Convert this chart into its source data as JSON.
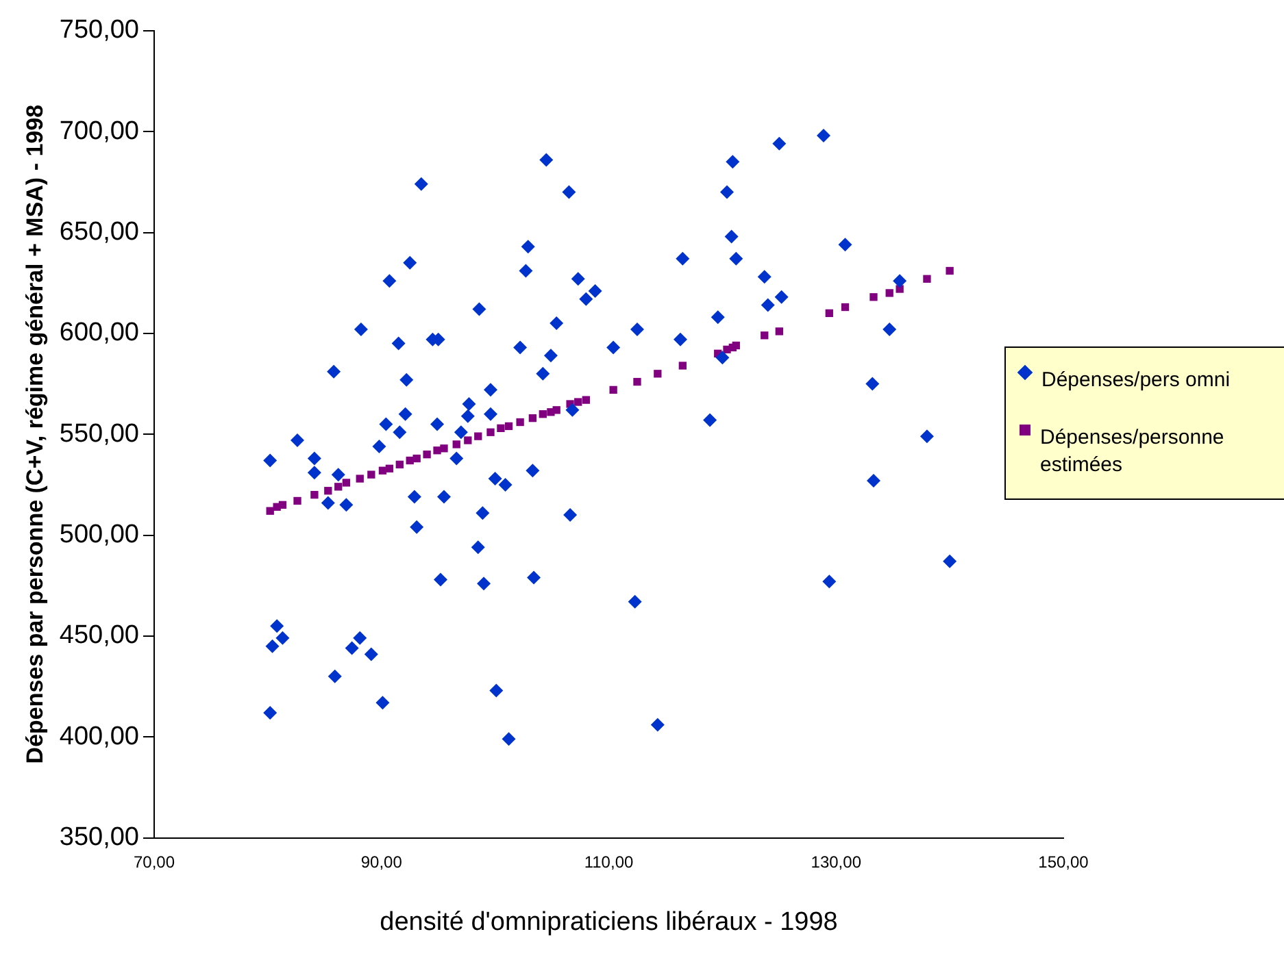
{
  "chart_data": {
    "type": "scatter",
    "xlabel": "densité d'omnipraticiens libéraux - 1998",
    "ylabel": "Dépenses par personne (C+V, régime général + MSA) - 1998",
    "xlim": [
      70,
      150
    ],
    "xticks": [
      {
        "value": 70,
        "label": "70,00"
      },
      {
        "value": 90,
        "label": "90,00"
      },
      {
        "value": 110,
        "label": "110,00"
      },
      {
        "value": 130,
        "label": "130,00"
      },
      {
        "value": 150,
        "label": "150,00"
      }
    ],
    "ylim": [
      350,
      750
    ],
    "yticks": [
      {
        "value": 350,
        "label": "350,00"
      },
      {
        "value": 400,
        "label": "400,00"
      },
      {
        "value": 450,
        "label": "450,00"
      },
      {
        "value": 500,
        "label": "500,00"
      },
      {
        "value": 550,
        "label": "550,00"
      },
      {
        "value": 600,
        "label": "600,00"
      },
      {
        "value": 650,
        "label": "650,00"
      },
      {
        "value": 700,
        "label": "700,00"
      },
      {
        "value": 750,
        "label": "750,00"
      }
    ],
    "grid": false,
    "legend": "right",
    "series": [
      {
        "name": "Dépenses/pers omni",
        "color": "#0033cc",
        "marker": "diamond",
        "x": [
          93.5,
          90.7,
          92.5,
          88.2,
          91.5,
          92.2,
          85.8,
          92.1,
          90.4,
          91.6,
          89.8,
          82.6,
          84.1,
          80.2,
          84.1,
          86.2,
          85.3,
          86.9,
          92.9,
          93.1,
          80.8,
          80.4,
          81.3,
          80.2,
          85.9,
          88.1,
          87.4,
          89.1,
          90.1,
          104.5,
          106.5,
          102.9,
          102.7,
          116.5,
          107.3,
          108.0,
          108.8,
          98.6,
          105.4,
          94.5,
          95.0,
          102.2,
          104.9,
          104.2,
          110.4,
          112.5,
          116.3,
          99.6,
          97.7,
          97.6,
          99.6,
          94.9,
          97.0,
          106.8,
          96.6,
          103.3,
          100.0,
          100.9,
          95.5,
          98.9,
          106.6,
          98.5,
          95.2,
          99.0,
          103.4,
          112.3,
          100.1,
          101.2,
          114.3,
          128.9,
          125.0,
          120.9,
          120.4,
          120.8,
          121.2,
          130.8,
          123.7,
          124.0,
          125.2,
          135.6,
          119.6,
          120.0,
          134.7,
          133.2,
          118.9,
          138.0,
          133.3,
          140.0,
          129.4
        ],
        "values": [
          674,
          626,
          635,
          602,
          595,
          577,
          581,
          560,
          555,
          551,
          544,
          547,
          538,
          537,
          531,
          530,
          516,
          515,
          519,
          504,
          455,
          445,
          449,
          412,
          430,
          449,
          444,
          441,
          417,
          686,
          670,
          643,
          631,
          637,
          627,
          617,
          621,
          612,
          605,
          597,
          597,
          593,
          589,
          580,
          593,
          602,
          597,
          572,
          565,
          559,
          560,
          555,
          551,
          562,
          538,
          532,
          528,
          525,
          519,
          511,
          510,
          494,
          478,
          476,
          479,
          467,
          423,
          399,
          406,
          698,
          694,
          685,
          670,
          648,
          637,
          644,
          628,
          614,
          618,
          626,
          608,
          588,
          602,
          575,
          557,
          549,
          527,
          487,
          477
        ]
      },
      {
        "name": "Dépenses/personne estimées",
        "color": "#800080",
        "marker": "square",
        "x": [
          80.2,
          80.8,
          81.3,
          82.6,
          84.1,
          85.3,
          86.2,
          86.9,
          88.1,
          89.1,
          90.1,
          90.7,
          91.6,
          92.5,
          93.1,
          94.0,
          94.9,
          95.5,
          96.6,
          97.6,
          98.5,
          99.6,
          100.5,
          101.2,
          102.2,
          103.3,
          104.2,
          104.9,
          105.4,
          106.6,
          107.3,
          108.0,
          110.4,
          112.5,
          114.3,
          116.5,
          119.6,
          120.4,
          120.9,
          121.2,
          123.7,
          125.0,
          129.4,
          130.8,
          133.3,
          134.7,
          135.6,
          138.0,
          140.0
        ],
        "values": [
          512,
          514,
          515,
          517,
          520,
          522,
          524,
          526,
          528,
          530,
          532,
          533,
          535,
          537,
          538,
          540,
          542,
          543,
          545,
          547,
          549,
          551,
          553,
          554,
          556,
          558,
          560,
          561,
          562,
          565,
          566,
          567,
          572,
          576,
          580,
          584,
          590,
          592,
          593,
          594,
          599,
          601,
          610,
          613,
          618,
          620,
          622,
          627,
          631
        ]
      }
    ]
  }
}
